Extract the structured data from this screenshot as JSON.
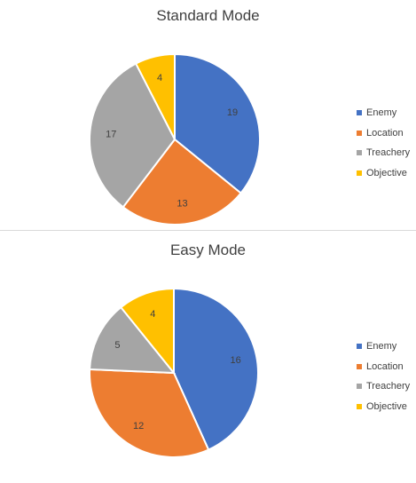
{
  "chart_data": [
    {
      "type": "pie",
      "title": "Standard Mode",
      "categories": [
        "Enemy",
        "Location",
        "Treachery",
        "Objective"
      ],
      "values": [
        19,
        13,
        17,
        4
      ],
      "legend": "right"
    },
    {
      "type": "pie",
      "title": "Easy Mode",
      "categories": [
        "Enemy",
        "Location",
        "Treachery",
        "Objective"
      ],
      "values": [
        16,
        12,
        5,
        4
      ],
      "legend": "right"
    }
  ],
  "colors": [
    "#4472c4",
    "#ed7d31",
    "#a5a5a5",
    "#ffc000"
  ]
}
